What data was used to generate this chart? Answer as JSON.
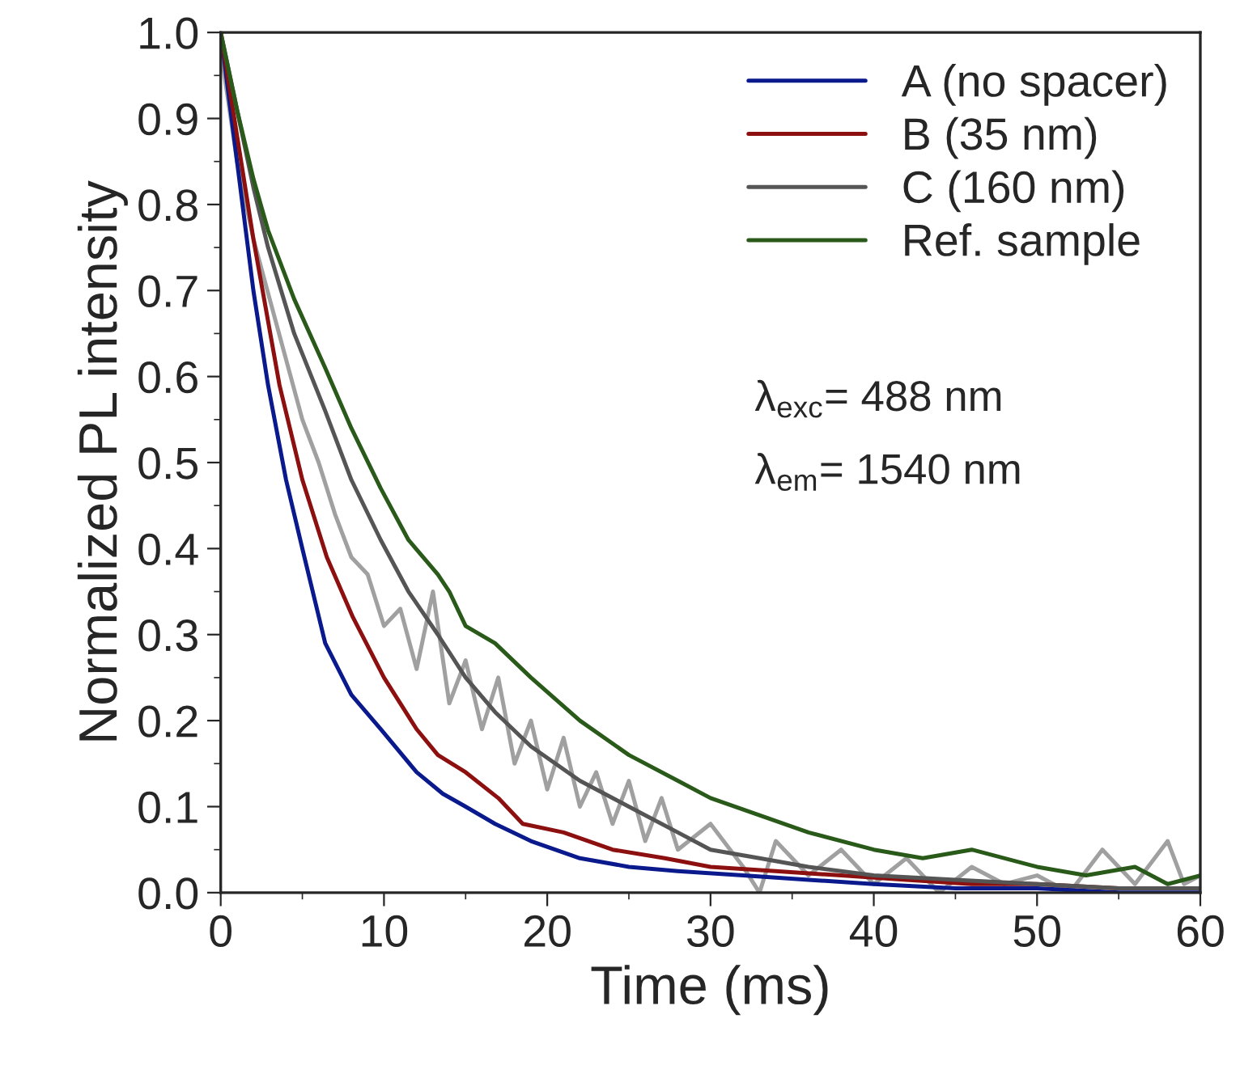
{
  "chart_data": {
    "type": "line",
    "xlabel": "Time (ms)",
    "ylabel": "Normalized PL intensity",
    "xlim": [
      0,
      60
    ],
    "xticks": [
      0,
      10,
      20,
      30,
      40,
      50,
      60
    ],
    "ylim": [
      0,
      1.0
    ],
    "yticks": [
      {
        "value": 0,
        "label": "0.0"
      },
      0.1,
      0.2,
      0.3,
      0.4,
      0.5,
      0.6,
      0.7,
      0.8,
      0.9,
      {
        "value": 1.0,
        "label": "1.0"
      }
    ],
    "grid": false,
    "legend": "top right",
    "line_style": "solid",
    "marker": "none",
    "annotations": [
      "λ$_{exc}$= 488 nm",
      "λ$_{em}$= 1540 nm"
    ],
    "series": [
      {
        "name": null,
        "color": "#a0a0a0",
        "x": [
          0,
          1,
          2,
          3,
          4,
          5,
          6,
          7,
          8,
          9,
          10,
          11,
          12,
          13,
          14,
          15,
          16,
          17,
          18,
          19,
          20,
          21,
          22,
          23,
          24,
          25,
          26,
          27,
          28,
          30,
          32,
          33,
          34,
          36,
          38,
          40,
          42,
          44,
          46,
          48,
          50,
          52,
          54,
          56,
          58,
          59,
          60
        ],
        "values": [
          0.98,
          0.85,
          0.76,
          0.69,
          0.62,
          0.55,
          0.5,
          0.44,
          0.39,
          0.37,
          0.31,
          0.33,
          0.26,
          0.35,
          0.22,
          0.27,
          0.19,
          0.25,
          0.15,
          0.2,
          0.12,
          0.18,
          0.1,
          0.14,
          0.08,
          0.13,
          0.06,
          0.11,
          0.05,
          0.08,
          0.03,
          0.0,
          0.06,
          0.02,
          0.05,
          0.01,
          0.04,
          0.0,
          0.03,
          0.01,
          0.02,
          0.0,
          0.05,
          0.01,
          0.06,
          0.01,
          0.02
        ]
      },
      {
        "name": "A (no spacer)",
        "color": "#0a1a8c",
        "x": [
          0,
          1,
          2,
          2.9,
          4,
          5,
          6.4,
          8,
          9.8,
          12,
          13.6,
          15,
          16.8,
          19,
          22,
          25,
          28,
          32,
          36,
          40,
          45,
          50,
          55,
          60
        ],
        "values": [
          1.0,
          0.85,
          0.7,
          0.59,
          0.48,
          0.4,
          0.29,
          0.23,
          0.19,
          0.14,
          0.115,
          0.1,
          0.08,
          0.06,
          0.04,
          0.03,
          0.025,
          0.02,
          0.015,
          0.01,
          0.005,
          0.005,
          0.0,
          0.0
        ]
      },
      {
        "name": "B (35 nm)",
        "color": "#8c1010",
        "x": [
          0,
          1,
          2,
          3.6,
          5,
          6.5,
          8.1,
          10,
          12,
          13.3,
          15,
          17,
          18.5,
          21,
          24,
          27.2,
          30,
          34,
          38,
          42,
          46,
          50,
          55,
          60
        ],
        "values": [
          1.0,
          0.88,
          0.76,
          0.59,
          0.48,
          0.39,
          0.32,
          0.25,
          0.19,
          0.16,
          0.14,
          0.11,
          0.08,
          0.07,
          0.05,
          0.04,
          0.03,
          0.025,
          0.02,
          0.015,
          0.01,
          0.01,
          0.005,
          0.005
        ]
      },
      {
        "name": "C (160 nm)",
        "color": "#555555",
        "x": [
          0,
          1,
          2,
          2.9,
          4.5,
          6.4,
          8,
          9.8,
          11.5,
          13.3,
          15,
          16.8,
          19,
          22,
          25,
          28,
          30,
          33,
          36,
          40,
          45,
          50,
          55,
          60
        ],
        "values": [
          1.0,
          0.91,
          0.82,
          0.75,
          0.65,
          0.56,
          0.48,
          0.41,
          0.35,
          0.3,
          0.25,
          0.21,
          0.17,
          0.13,
          0.1,
          0.07,
          0.05,
          0.04,
          0.03,
          0.02,
          0.015,
          0.01,
          0.005,
          0.005
        ]
      },
      {
        "name": "Ref. sample",
        "color": "#2a5a1a",
        "x": [
          0,
          1,
          2,
          2.9,
          4.5,
          6.4,
          8,
          9.8,
          11.5,
          13.3,
          14,
          15,
          16.8,
          19,
          22,
          25,
          28,
          30,
          33,
          36,
          40,
          43,
          46,
          50,
          53,
          56,
          58,
          60
        ],
        "values": [
          1.0,
          0.91,
          0.83,
          0.77,
          0.69,
          0.61,
          0.54,
          0.47,
          0.41,
          0.37,
          0.35,
          0.31,
          0.29,
          0.25,
          0.2,
          0.16,
          0.13,
          0.11,
          0.09,
          0.07,
          0.05,
          0.04,
          0.05,
          0.03,
          0.02,
          0.03,
          0.01,
          0.02
        ]
      }
    ]
  }
}
